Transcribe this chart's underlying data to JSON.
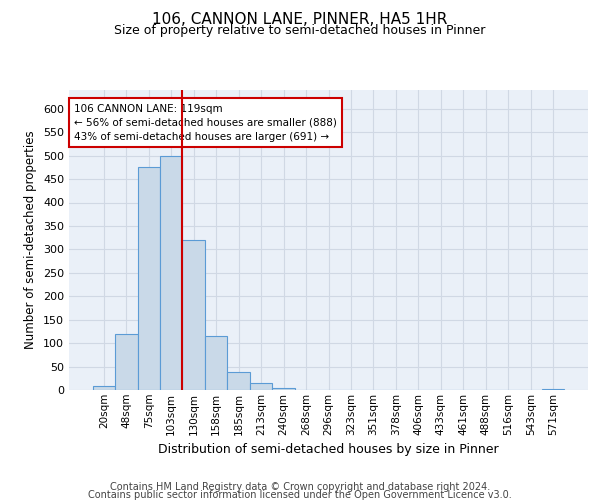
{
  "title": "106, CANNON LANE, PINNER, HA5 1HR",
  "subtitle": "Size of property relative to semi-detached houses in Pinner",
  "xlabel": "Distribution of semi-detached houses by size in Pinner",
  "ylabel": "Number of semi-detached properties",
  "footer_line1": "Contains HM Land Registry data © Crown copyright and database right 2024.",
  "footer_line2": "Contains public sector information licensed under the Open Government Licence v3.0.",
  "bin_labels": [
    "20sqm",
    "48sqm",
    "75sqm",
    "103sqm",
    "130sqm",
    "158sqm",
    "185sqm",
    "213sqm",
    "240sqm",
    "268sqm",
    "296sqm",
    "323sqm",
    "351sqm",
    "378sqm",
    "406sqm",
    "433sqm",
    "461sqm",
    "488sqm",
    "516sqm",
    "543sqm",
    "571sqm"
  ],
  "bar_heights": [
    8,
    120,
    475,
    500,
    320,
    115,
    38,
    15,
    5,
    0,
    0,
    0,
    0,
    0,
    0,
    0,
    0,
    0,
    0,
    0,
    3
  ],
  "bar_color": "#c9d9e8",
  "bar_edge_color": "#5b9bd5",
  "bar_edge_width": 0.8,
  "vline_x": 3.5,
  "vline_color": "#cc0000",
  "annotation_text": "106 CANNON LANE: 119sqm\n← 56% of semi-detached houses are smaller (888)\n43% of semi-detached houses are larger (691) →",
  "annotation_box_color": "#ffffff",
  "annotation_box_edge_color": "#cc0000",
  "annotation_fontsize": 7.5,
  "ylim": [
    0,
    640
  ],
  "yticks": [
    0,
    50,
    100,
    150,
    200,
    250,
    300,
    350,
    400,
    450,
    500,
    550,
    600
  ],
  "grid_color": "#d0d8e4",
  "background_color": "#eaf0f8",
  "title_fontsize": 11,
  "subtitle_fontsize": 9,
  "xlabel_fontsize": 9,
  "ylabel_fontsize": 8.5,
  "tick_fontsize": 7.5,
  "ytick_fontsize": 8,
  "footer_fontsize": 7
}
